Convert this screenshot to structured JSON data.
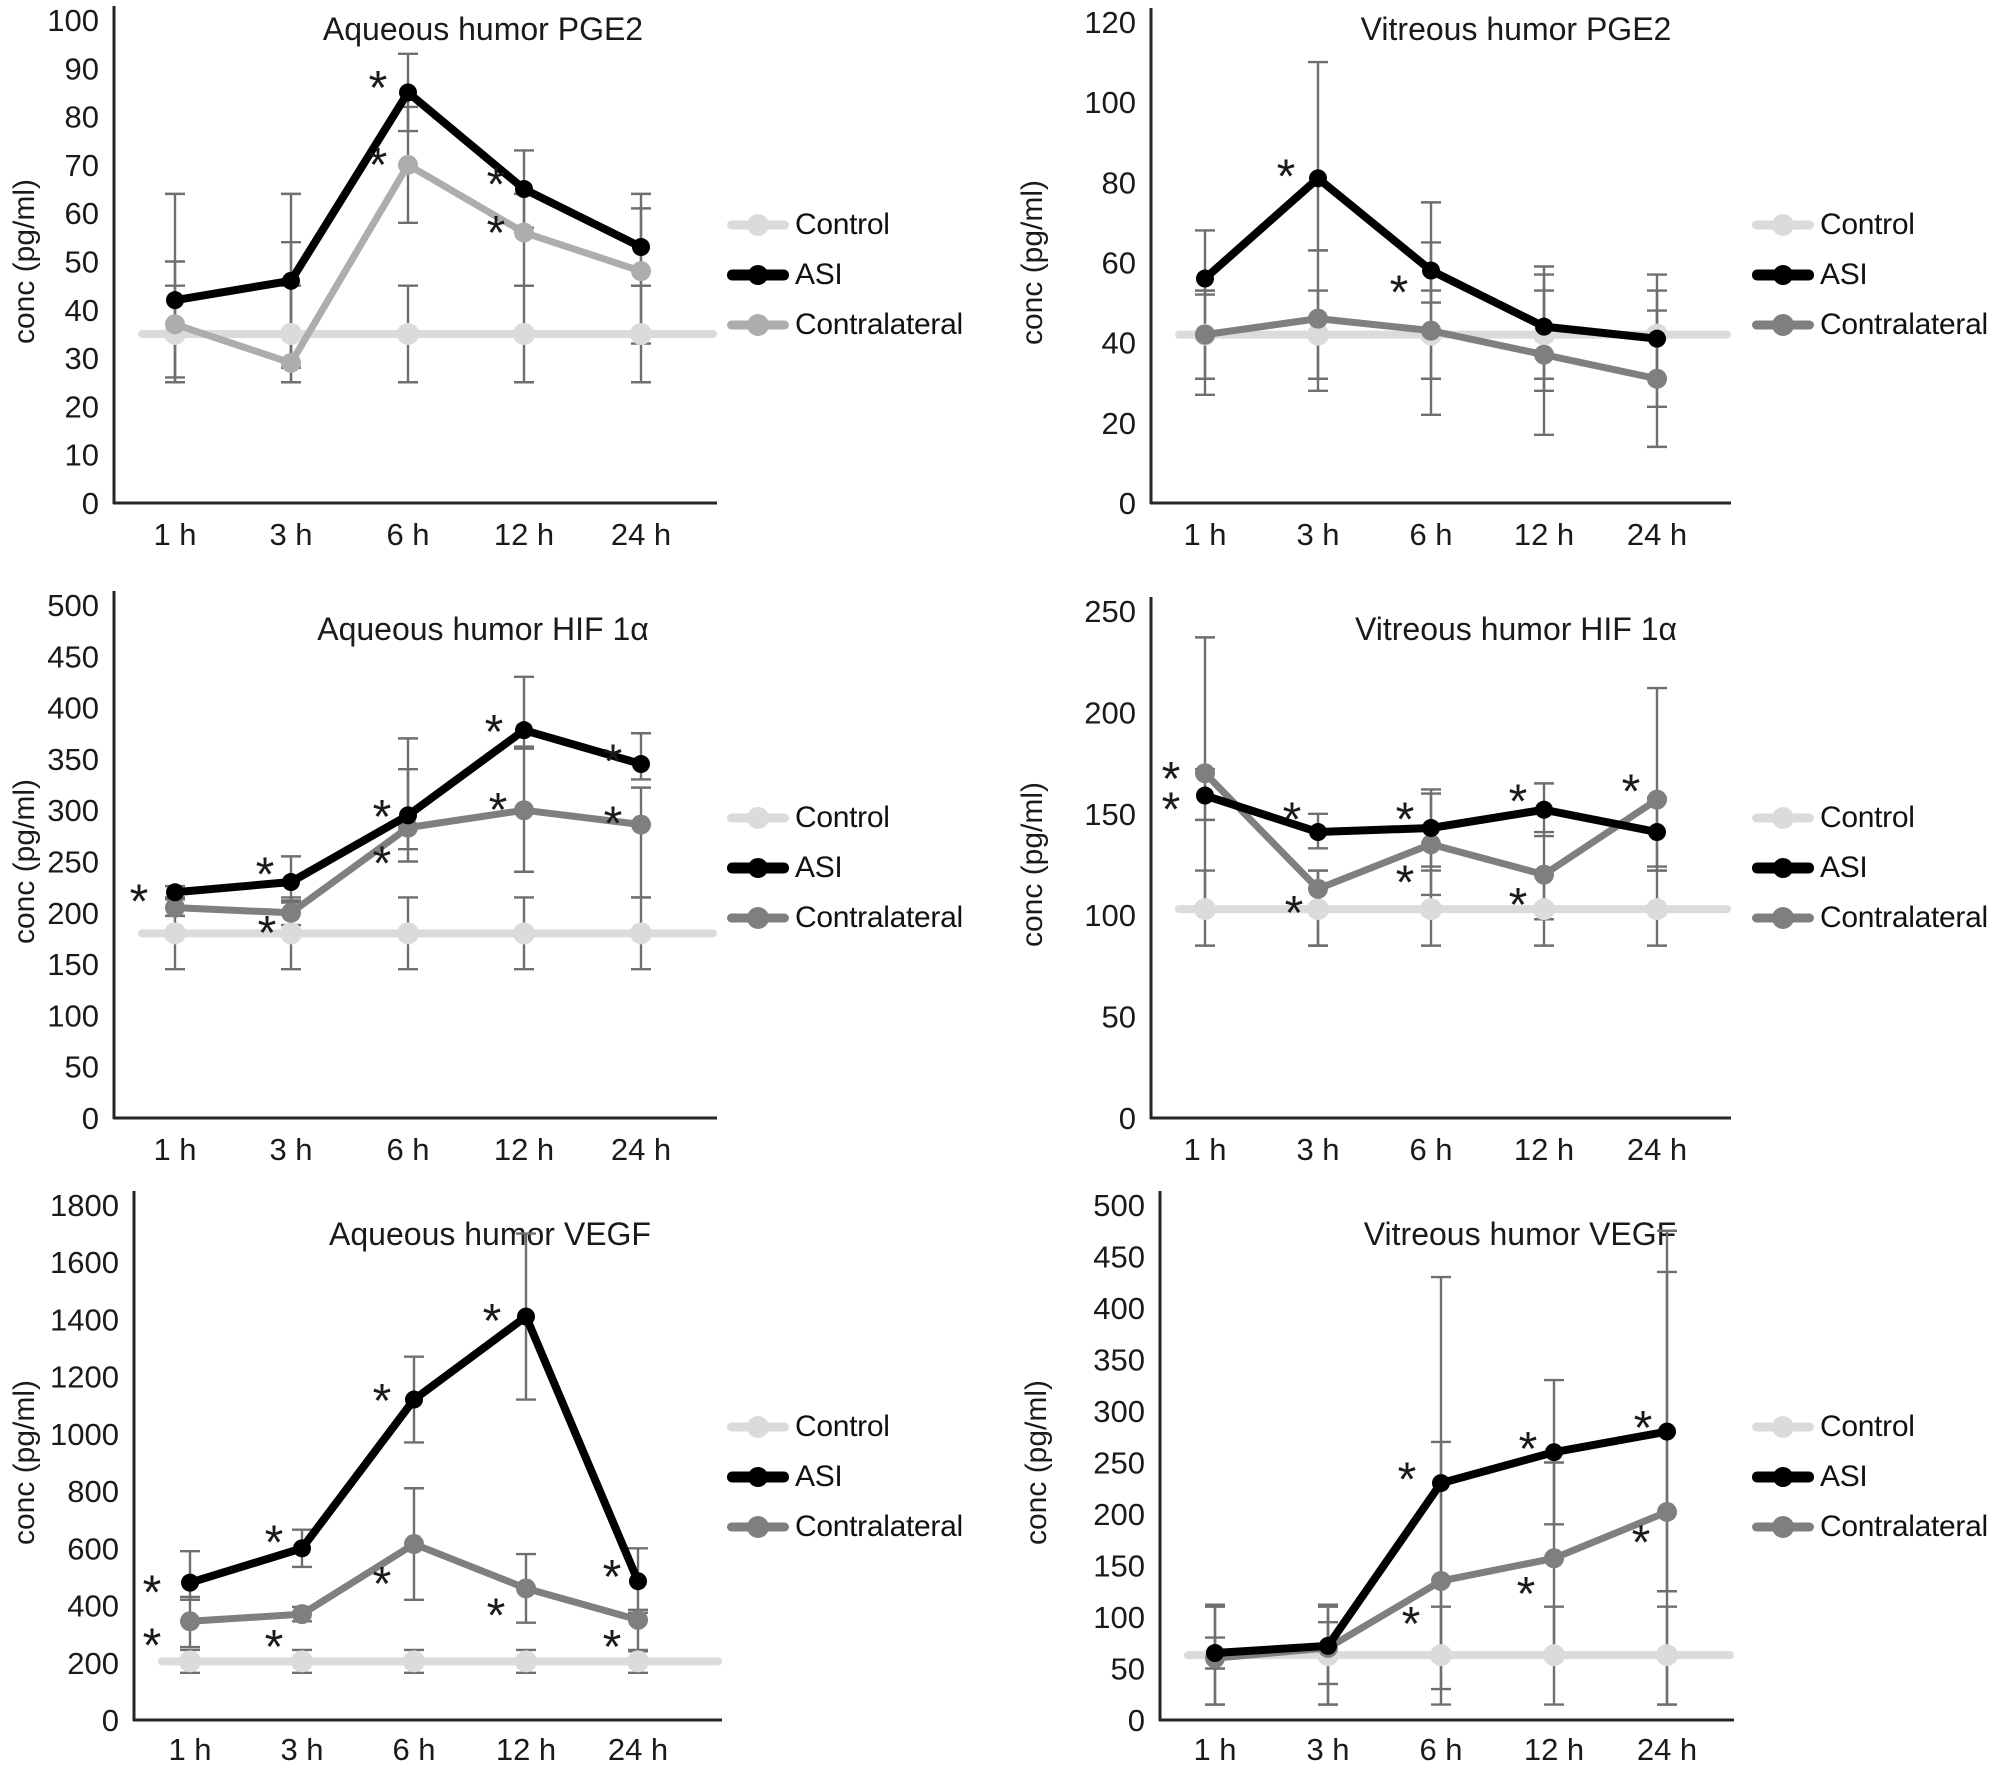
{
  "legend": {
    "entries": [
      {
        "label": "Control"
      },
      {
        "label": "ASI"
      },
      {
        "label": "Contralateral"
      }
    ]
  },
  "chart_data": [
    {
      "type": "line",
      "title": "Aqueous humor PGE2",
      "xlabel": "",
      "ylabel": "conc (pg/ml)",
      "categories": [
        "1 h",
        "3 h",
        "6 h",
        "12 h",
        "24 h"
      ],
      "ylim": [
        0,
        100
      ],
      "ytick_step": 10,
      "grid": false,
      "legend_position": "right",
      "series": [
        {
          "name": "Control",
          "color": "#DBDBDB",
          "values": [
            35,
            35,
            35,
            35,
            35
          ],
          "err_hi": [
            45,
            45,
            45,
            45,
            45
          ],
          "err_lo": [
            25,
            25,
            25,
            25,
            25
          ]
        },
        {
          "name": "ASI",
          "color": "#000000",
          "values": [
            42,
            46,
            85,
            65,
            53
          ],
          "err_hi": [
            64,
            64,
            93,
            73,
            64
          ],
          "err_lo": [
            25,
            28,
            77,
            57,
            45
          ]
        },
        {
          "name": "Contralateral",
          "color": "#ADADAD",
          "values": [
            37,
            29,
            70,
            56,
            48
          ],
          "err_hi": [
            50,
            54,
            82,
            64,
            61
          ],
          "err_lo": [
            26,
            25,
            58,
            45,
            33
          ]
        }
      ],
      "annotations": [
        {
          "x": 2,
          "y": 88,
          "dx": -30,
          "label": "*"
        },
        {
          "x": 2,
          "y": 72,
          "dx": -30,
          "label": "*"
        },
        {
          "x": 3,
          "y": 68,
          "dx": -28,
          "label": "*"
        },
        {
          "x": 3,
          "y": 58,
          "dx": -28,
          "label": "*"
        }
      ]
    },
    {
      "type": "line",
      "title": "Vitreous humor PGE2",
      "xlabel": "",
      "ylabel": "conc (pg/ml)",
      "categories": [
        "1 h",
        "3 h",
        "6 h",
        "12 h",
        "24 h"
      ],
      "ylim": [
        0,
        120
      ],
      "ytick_step": 20,
      "grid": false,
      "legend_position": "right",
      "series": [
        {
          "name": "Control",
          "color": "#DBDBDB",
          "values": [
            42,
            42,
            42,
            42,
            42
          ],
          "err_hi": [
            53,
            53,
            53,
            53,
            53
          ],
          "err_lo": [
            31,
            31,
            31,
            31,
            31
          ]
        },
        {
          "name": "ASI",
          "color": "#000000",
          "values": [
            56,
            81,
            58,
            44,
            41
          ],
          "err_hi": [
            68,
            110,
            75,
            59,
            57
          ],
          "err_lo": [
            52,
            63,
            50,
            28,
            24
          ]
        },
        {
          "name": "Contralateral",
          "color": "#7F7F7F",
          "values": [
            42,
            46,
            43,
            37,
            31
          ],
          "err_hi": [
            53,
            63,
            65,
            57,
            48
          ],
          "err_lo": [
            27,
            28,
            22,
            17,
            14
          ]
        }
      ],
      "annotations": [
        {
          "x": 1,
          "y": 84,
          "dx": -32,
          "label": "*"
        },
        {
          "x": 2,
          "y": 55,
          "dx": -32,
          "label": "*"
        }
      ]
    },
    {
      "type": "line",
      "title": "Aqueous humor HIF 1α",
      "xlabel": "",
      "ylabel": "conc (pg/ml)",
      "categories": [
        "1 h",
        "3 h",
        "6 h",
        "12 h",
        "24 h"
      ],
      "ylim": [
        0,
        500
      ],
      "ytick_step": 50,
      "grid": false,
      "legend_position": "right",
      "series": [
        {
          "name": "Control",
          "color": "#DBDBDB",
          "values": [
            180,
            180,
            180,
            180,
            180
          ],
          "err_hi": [
            215,
            215,
            215,
            215,
            215
          ],
          "err_lo": [
            145,
            145,
            145,
            145,
            145
          ]
        },
        {
          "name": "ASI",
          "color": "#000000",
          "values": [
            220,
            230,
            295,
            378,
            345
          ],
          "err_hi": [
            226,
            255,
            370,
            430,
            375
          ],
          "err_lo": [
            214,
            210,
            262,
            362,
            330
          ]
        },
        {
          "name": "Contralateral",
          "color": "#7F7F7F",
          "values": [
            205,
            200,
            283,
            300,
            286
          ],
          "err_hi": [
            213,
            212,
            340,
            360,
            322
          ],
          "err_lo": [
            197,
            188,
            250,
            240,
            215
          ]
        }
      ],
      "annotations": [
        {
          "x": 0,
          "y": 221,
          "dx": -36,
          "label": "*"
        },
        {
          "x": 1,
          "y": 247,
          "dx": -26,
          "label": "*"
        },
        {
          "x": 1,
          "y": 190,
          "dx": -24,
          "label": "*"
        },
        {
          "x": 2,
          "y": 303,
          "dx": -26,
          "label": "*"
        },
        {
          "x": 2,
          "y": 258,
          "dx": -26,
          "label": "*"
        },
        {
          "x": 3,
          "y": 386,
          "dx": -30,
          "label": "*"
        },
        {
          "x": 3,
          "y": 310,
          "dx": -26,
          "label": "*"
        },
        {
          "x": 4,
          "y": 357,
          "dx": -28,
          "label": "*"
        },
        {
          "x": 4,
          "y": 297,
          "dx": -28,
          "label": "*"
        }
      ]
    },
    {
      "type": "line",
      "title": "Vitreous humor  HIF 1α",
      "xlabel": "",
      "ylabel": "conc (pg/ml)",
      "categories": [
        "1 h",
        "3 h",
        "6 h",
        "12 h",
        "24 h"
      ],
      "ylim": [
        0,
        250
      ],
      "ytick_step": 50,
      "grid": false,
      "legend_position": "right",
      "series": [
        {
          "name": "Control",
          "color": "#DBDBDB",
          "values": [
            103,
            103,
            103,
            103,
            103
          ],
          "err_hi": [
            122,
            122,
            122,
            122,
            122
          ],
          "err_lo": [
            85,
            85,
            85,
            85,
            85
          ]
        },
        {
          "name": "ASI",
          "color": "#000000",
          "values": [
            159,
            141,
            143,
            152,
            141
          ],
          "err_hi": [
            172,
            150,
            162,
            165,
            158
          ],
          "err_lo": [
            147,
            133,
            124,
            139,
            124
          ]
        },
        {
          "name": "Contralateral",
          "color": "#7F7F7F",
          "values": [
            170,
            113,
            135,
            120,
            157
          ],
          "err_hi": [
            237,
            122,
            160,
            141,
            212
          ],
          "err_lo": [
            103,
            85,
            110,
            98,
            122
          ]
        }
      ],
      "annotations": [
        {
          "x": 0,
          "y": 172,
          "dx": -34,
          "label": "*"
        },
        {
          "x": 0,
          "y": 157,
          "dx": -34,
          "label": "*"
        },
        {
          "x": 1,
          "y": 152,
          "dx": -26,
          "label": "*"
        },
        {
          "x": 1,
          "y": 106,
          "dx": -24,
          "label": "*"
        },
        {
          "x": 2,
          "y": 152,
          "dx": -26,
          "label": "*"
        },
        {
          "x": 2,
          "y": 121,
          "dx": -26,
          "label": "*"
        },
        {
          "x": 3,
          "y": 161,
          "dx": -26,
          "label": "*"
        },
        {
          "x": 3,
          "y": 110,
          "dx": -26,
          "label": "*"
        },
        {
          "x": 4,
          "y": 166,
          "dx": -26,
          "label": "*"
        }
      ]
    },
    {
      "type": "line",
      "title": "Aqueous humor VEGF",
      "xlabel": "",
      "ylabel": "conc (pg/ml)",
      "categories": [
        "1 h",
        "3 h",
        "6 h",
        "12 h",
        "24 h"
      ],
      "ylim": [
        0,
        1800
      ],
      "ytick_step": 200,
      "grid": false,
      "legend_position": "right",
      "series": [
        {
          "name": "Control",
          "color": "#DBDBDB",
          "values": [
            205,
            205,
            205,
            205,
            205
          ],
          "err_hi": [
            245,
            245,
            245,
            245,
            245
          ],
          "err_lo": [
            165,
            165,
            165,
            165,
            165
          ]
        },
        {
          "name": "ASI",
          "color": "#000000",
          "values": [
            480,
            600,
            1120,
            1410,
            485
          ],
          "err_hi": [
            590,
            665,
            1270,
            1700,
            600
          ],
          "err_lo": [
            420,
            535,
            970,
            1120,
            375
          ]
        },
        {
          "name": "Contralateral",
          "color": "#7F7F7F",
          "values": [
            345,
            370,
            615,
            460,
            350
          ],
          "err_hi": [
            430,
            395,
            810,
            580,
            385
          ],
          "err_lo": [
            255,
            345,
            420,
            340,
            240
          ]
        }
      ],
      "annotations": [
        {
          "x": 0,
          "y": 480,
          "dx": -38,
          "label": "*"
        },
        {
          "x": 0,
          "y": 295,
          "dx": -38,
          "label": "*"
        },
        {
          "x": 1,
          "y": 655,
          "dx": -28,
          "label": "*"
        },
        {
          "x": 1,
          "y": 290,
          "dx": -28,
          "label": "*"
        },
        {
          "x": 2,
          "y": 1150,
          "dx": -32,
          "label": "*"
        },
        {
          "x": 2,
          "y": 510,
          "dx": -32,
          "label": "*"
        },
        {
          "x": 3,
          "y": 1430,
          "dx": -34,
          "label": "*"
        },
        {
          "x": 3,
          "y": 400,
          "dx": -30,
          "label": "*"
        },
        {
          "x": 4,
          "y": 535,
          "dx": -26,
          "label": "*"
        },
        {
          "x": 4,
          "y": 290,
          "dx": -26,
          "label": "*"
        }
      ]
    },
    {
      "type": "line",
      "title": "Vitreous humor VEGF",
      "xlabel": "",
      "ylabel": "conc (pg/ml)",
      "categories": [
        "1 h",
        "3 h",
        "6 h",
        "12 h",
        "24 h"
      ],
      "ylim": [
        0,
        500
      ],
      "ytick_step": 50,
      "grid": false,
      "legend_position": "right",
      "series": [
        {
          "name": "Control",
          "color": "#DBDBDB",
          "values": [
            63,
            63,
            63,
            63,
            63
          ],
          "err_hi": [
            110,
            110,
            110,
            110,
            110
          ],
          "err_lo": [
            15,
            15,
            15,
            15,
            15
          ]
        },
        {
          "name": "ASI",
          "color": "#000000",
          "values": [
            65,
            72,
            230,
            260,
            280
          ],
          "err_hi": [
            80,
            112,
            430,
            330,
            475
          ],
          "err_lo": [
            50,
            35,
            30,
            190,
            125
          ]
        },
        {
          "name": "Contralateral",
          "color": "#7F7F7F",
          "values": [
            60,
            70,
            135,
            157,
            202
          ],
          "err_hi": [
            112,
            95,
            270,
            250,
            435
          ],
          "err_lo": [
            15,
            15,
            63,
            63,
            15
          ]
        }
      ],
      "annotations": [
        {
          "x": 2,
          "y": 243,
          "dx": -34,
          "label": "*"
        },
        {
          "x": 2,
          "y": 103,
          "dx": -30,
          "label": "*"
        },
        {
          "x": 3,
          "y": 273,
          "dx": -26,
          "label": "*"
        },
        {
          "x": 3,
          "y": 132,
          "dx": -28,
          "label": "*"
        },
        {
          "x": 4,
          "y": 293,
          "dx": -24,
          "label": "*"
        },
        {
          "x": 4,
          "y": 182,
          "dx": -26,
          "label": "*"
        }
      ]
    }
  ]
}
